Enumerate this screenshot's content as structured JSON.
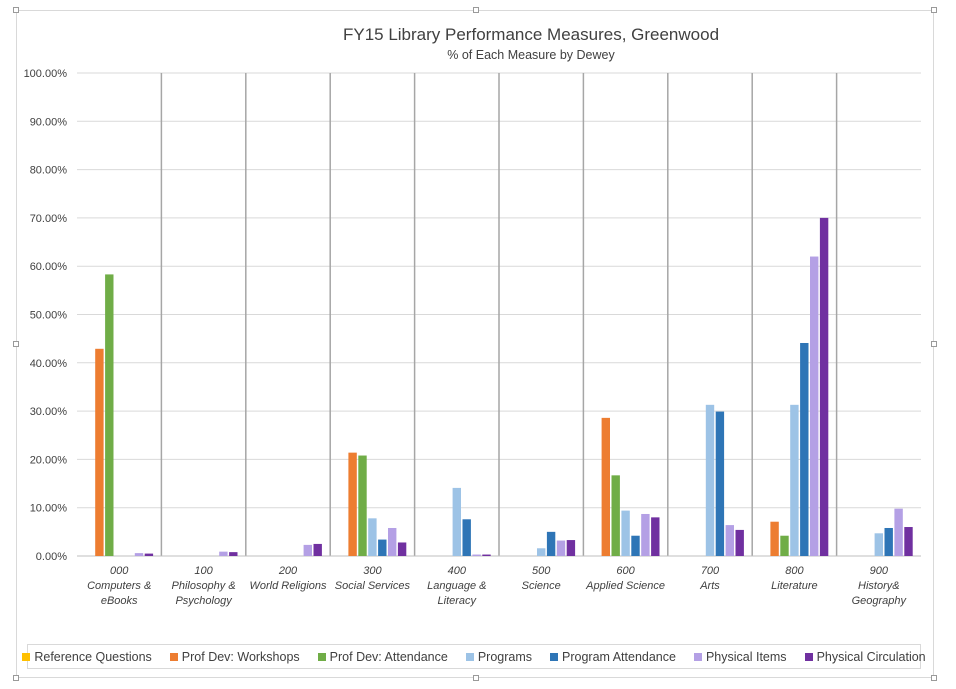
{
  "chart_data": {
    "type": "bar",
    "title": "FY15 Library Performance Measures, Greenwood",
    "subtitle": "% of Each Measure by Dewey",
    "ylim": [
      0,
      100
    ],
    "yticks": [
      "0.00%",
      "10.00%",
      "20.00%",
      "30.00%",
      "40.00%",
      "50.00%",
      "60.00%",
      "70.00%",
      "80.00%",
      "90.00%",
      "100.00%"
    ],
    "ytick_values": [
      0,
      10,
      20,
      30,
      40,
      50,
      60,
      70,
      80,
      90,
      100
    ],
    "categories": [
      [
        "000",
        "Computers &",
        "eBooks"
      ],
      [
        "100",
        "Philosophy &",
        "Psychology"
      ],
      [
        "200",
        "World Religions"
      ],
      [
        "300",
        "Social Services"
      ],
      [
        "400",
        "Language &",
        "Literacy"
      ],
      [
        "500",
        "Science"
      ],
      [
        "600",
        "Applied Science"
      ],
      [
        "700",
        "Arts"
      ],
      [
        "800",
        "Literature"
      ],
      [
        "900",
        "History&",
        "Geography"
      ]
    ],
    "series": [
      {
        "name": "Reference Questions",
        "color": "#FFC000",
        "values": [
          0,
          0,
          0,
          0,
          0,
          0,
          0,
          0,
          0,
          0
        ]
      },
      {
        "name": "Prof Dev: Workshops",
        "color": "#ED7D31",
        "values": [
          42.9,
          0,
          0,
          21.4,
          0,
          0,
          28.6,
          0,
          7.1,
          0
        ]
      },
      {
        "name": "Prof Dev: Attendance",
        "color": "#70AD47",
        "values": [
          58.3,
          0,
          0,
          20.8,
          0,
          0,
          16.7,
          0,
          4.2,
          0
        ]
      },
      {
        "name": "Programs",
        "color": "#9DC3E6",
        "values": [
          0,
          0,
          0,
          7.8,
          14.1,
          1.6,
          9.4,
          31.3,
          31.3,
          4.7
        ]
      },
      {
        "name": "Program Attendance",
        "color": "#2E75B6",
        "values": [
          0,
          0,
          0,
          3.4,
          7.6,
          5.0,
          4.2,
          29.9,
          44.1,
          5.8
        ]
      },
      {
        "name": "Physical Items",
        "color": "#B4A0E5",
        "values": [
          0.6,
          0.9,
          2.3,
          5.8,
          0.3,
          3.2,
          8.7,
          6.4,
          62.0,
          9.8
        ]
      },
      {
        "name": "Physical Circulation",
        "color": "#7030A0",
        "values": [
          0.5,
          0.8,
          2.5,
          2.8,
          0.3,
          3.3,
          8.0,
          5.4,
          70.0,
          6.0
        ]
      }
    ],
    "legend_position": "bottom",
    "grid": true
  }
}
